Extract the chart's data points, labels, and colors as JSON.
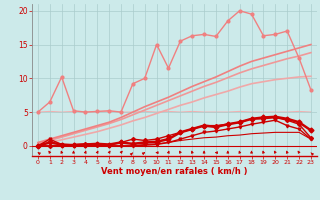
{
  "bg_color": "#cceaea",
  "grid_color": "#aacccc",
  "xlabel": "Vent moyen/en rafales ( km/h )",
  "xlabel_color": "#cc0000",
  "tick_color": "#cc0000",
  "axis_color": "#888888",
  "xlim": [
    -0.5,
    23.5
  ],
  "ylim": [
    -1.5,
    21
  ],
  "yticks": [
    0,
    5,
    10,
    15,
    20
  ],
  "xticks": [
    0,
    1,
    2,
    3,
    4,
    5,
    6,
    7,
    8,
    9,
    10,
    11,
    12,
    13,
    14,
    15,
    16,
    17,
    18,
    19,
    20,
    21,
    22,
    23
  ],
  "line_jagged_x": [
    0,
    1,
    2,
    3,
    4,
    5,
    6,
    7,
    8,
    9,
    10,
    11,
    12,
    13,
    14,
    15,
    16,
    17,
    18,
    19,
    20,
    21,
    22,
    23
  ],
  "line_jagged_y": [
    5.0,
    6.5,
    10.2,
    5.2,
    5.0,
    5.1,
    5.2,
    5.0,
    9.2,
    10.0,
    15.0,
    11.5,
    15.5,
    16.3,
    16.5,
    16.2,
    18.5,
    20.0,
    19.5,
    16.3,
    16.5,
    17.0,
    13.0,
    8.3
  ],
  "line_jagged_color": "#f08080",
  "line_jagged_lw": 1.0,
  "line_jagged_ms": 2.0,
  "line_trend1_x": [
    0,
    1,
    2,
    3,
    4,
    5,
    6,
    7,
    8,
    9,
    10,
    11,
    12,
    13,
    14,
    15,
    16,
    17,
    18,
    19,
    20,
    21,
    22,
    23
  ],
  "line_trend1_y": [
    0.5,
    1.0,
    1.5,
    2.0,
    2.5,
    3.0,
    3.5,
    4.2,
    5.0,
    5.8,
    6.5,
    7.2,
    8.0,
    8.8,
    9.5,
    10.2,
    11.0,
    11.8,
    12.5,
    13.0,
    13.5,
    14.0,
    14.5,
    15.0
  ],
  "line_trend1_color": "#f08080",
  "line_trend1_lw": 1.2,
  "line_trend2_x": [
    0,
    1,
    2,
    3,
    4,
    5,
    6,
    7,
    8,
    9,
    10,
    11,
    12,
    13,
    14,
    15,
    16,
    17,
    18,
    19,
    20,
    21,
    22,
    23
  ],
  "line_trend2_y": [
    0.3,
    0.8,
    1.3,
    1.8,
    2.3,
    2.8,
    3.3,
    3.9,
    4.6,
    5.3,
    6.0,
    6.7,
    7.4,
    8.1,
    8.8,
    9.4,
    10.1,
    10.8,
    11.4,
    11.9,
    12.4,
    12.9,
    13.3,
    13.8
  ],
  "line_trend2_color": "#f09898",
  "line_trend2_lw": 1.2,
  "line_trend3_x": [
    0,
    1,
    2,
    3,
    4,
    5,
    6,
    7,
    8,
    9,
    10,
    11,
    12,
    13,
    14,
    15,
    16,
    17,
    18,
    19,
    20,
    21,
    22,
    23
  ],
  "line_trend3_y": [
    0.1,
    0.5,
    0.9,
    1.3,
    1.7,
    2.1,
    2.6,
    3.1,
    3.7,
    4.2,
    4.8,
    5.4,
    6.0,
    6.5,
    7.1,
    7.6,
    8.1,
    8.7,
    9.2,
    9.5,
    9.8,
    10.0,
    10.2,
    10.3
  ],
  "line_trend3_color": "#f0a8a8",
  "line_trend3_lw": 1.2,
  "line_flat_x": [
    0,
    1,
    2,
    3,
    4,
    5,
    6,
    7,
    8,
    9,
    10,
    11,
    12,
    13,
    14,
    15,
    16,
    17,
    18,
    19,
    20,
    21,
    22,
    23
  ],
  "line_flat_y": [
    5.0,
    5.1,
    5.0,
    5.1,
    5.0,
    5.0,
    5.1,
    5.0,
    5.0,
    5.1,
    5.0,
    5.1,
    5.0,
    5.1,
    5.0,
    5.0,
    5.0,
    5.1,
    5.0,
    5.0,
    5.0,
    5.0,
    5.1,
    5.0
  ],
  "line_flat_color": "#f0b0b0",
  "line_flat_lw": 0.8,
  "line_med_x": [
    0,
    1,
    2,
    3,
    4,
    5,
    6,
    7,
    8,
    9,
    10,
    11,
    12,
    13,
    14,
    15,
    16,
    17,
    18,
    19,
    20,
    21,
    22,
    23
  ],
  "line_med_y": [
    0.0,
    0.5,
    0.2,
    0.1,
    0.2,
    0.3,
    0.2,
    0.5,
    0.3,
    0.5,
    0.6,
    1.0,
    2.0,
    2.5,
    3.0,
    2.8,
    3.2,
    3.5,
    4.0,
    4.2,
    4.3,
    4.0,
    3.5,
    2.3
  ],
  "line_med_color": "#cc0000",
  "line_med_lw": 1.8,
  "line_med_ms": 2.5,
  "line_low1_x": [
    0,
    1,
    2,
    3,
    4,
    5,
    6,
    7,
    8,
    9,
    10,
    11,
    12,
    13,
    14,
    15,
    16,
    17,
    18,
    19,
    20,
    21,
    22,
    23
  ],
  "line_low1_y": [
    0.0,
    1.0,
    0.2,
    0.0,
    0.0,
    0.1,
    0.0,
    0.0,
    0.0,
    0.1,
    0.2,
    0.5,
    1.0,
    1.5,
    2.0,
    2.2,
    2.5,
    2.8,
    3.2,
    3.5,
    3.8,
    3.0,
    2.5,
    1.0
  ],
  "line_low1_color": "#cc0000",
  "line_low1_lw": 1.0,
  "line_low1_ms": 2.0,
  "line_low2_x": [
    0,
    1,
    2,
    3,
    4,
    5,
    6,
    7,
    8,
    9,
    10,
    11,
    12,
    13,
    14,
    15,
    16,
    17,
    18,
    19,
    20,
    21,
    22,
    23
  ],
  "line_low2_y": [
    0.0,
    0.0,
    0.0,
    0.0,
    0.0,
    0.0,
    0.0,
    0.0,
    0.0,
    0.2,
    0.3,
    0.5,
    0.8,
    1.0,
    1.2,
    1.3,
    1.5,
    1.6,
    1.8,
    1.9,
    2.0,
    2.0,
    2.0,
    1.0
  ],
  "line_low2_color": "#cc0000",
  "line_low2_lw": 0.8,
  "line_low3_x": [
    0,
    1,
    2,
    3,
    4,
    5,
    6,
    7,
    8,
    9,
    10,
    11,
    12,
    13,
    14,
    15,
    16,
    17,
    18,
    19,
    20,
    21,
    22,
    23
  ],
  "line_low3_y": [
    0.0,
    0.0,
    0.1,
    0.2,
    0.3,
    0.2,
    0.1,
    0.5,
    1.0,
    0.8,
    1.0,
    1.5,
    2.0,
    2.5,
    3.0,
    3.0,
    3.2,
    3.5,
    4.0,
    4.0,
    4.2,
    3.8,
    3.2,
    1.2
  ],
  "line_low3_color": "#cc0000",
  "line_low3_lw": 1.0,
  "line_low3_ms": 2.0,
  "wind_arrows_angles": [
    225,
    200,
    190,
    180,
    170,
    165,
    160,
    155,
    150,
    135,
    270,
    170,
    200,
    190,
    180,
    270,
    180,
    190,
    180,
    190,
    200,
    190,
    200,
    210
  ]
}
